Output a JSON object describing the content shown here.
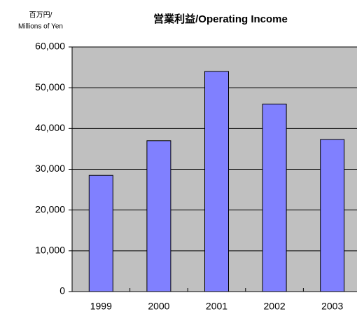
{
  "chart_data": {
    "type": "bar",
    "title": "営業利益/Operating Income",
    "y_label": [
      "百万円/",
      "Millions of Yen"
    ],
    "categories": [
      "1999",
      "2000",
      "2001",
      "2002",
      "2003"
    ],
    "values": [
      28500,
      37000,
      54000,
      46000,
      37300
    ],
    "color": "#8080ff",
    "ylim": [
      0,
      60000
    ],
    "yticks": [
      0,
      {
        "value": 10000,
        "label": "10,000"
      },
      {
        "value": 20000,
        "label": "20,000"
      },
      {
        "value": 30000,
        "label": "30,000"
      },
      {
        "value": 40000,
        "label": "40,000"
      },
      {
        "value": 50000,
        "label": "50,000"
      },
      {
        "value": 60000,
        "label": "60,000"
      }
    ],
    "grid": true
  }
}
